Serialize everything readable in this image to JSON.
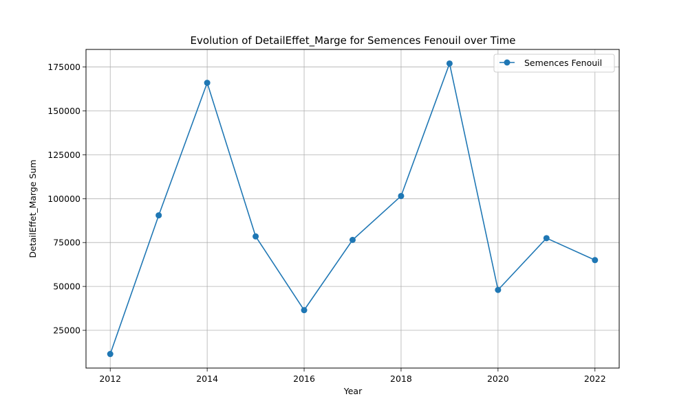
{
  "chart_data": {
    "type": "line",
    "title": "Evolution of DetailEffet_Marge for Semences Fenouil over Time",
    "xlabel": "Year",
    "ylabel": "DetailEffet_Marge Sum",
    "xlim": [
      2011.5,
      2022.5
    ],
    "ylim": [
      3500,
      185000
    ],
    "xticks": [
      2012,
      2014,
      2016,
      2018,
      2020,
      2022
    ],
    "yticks": [
      25000,
      50000,
      75000,
      100000,
      125000,
      150000,
      175000
    ],
    "grid": true,
    "legend_position": "top-right",
    "series": [
      {
        "name": "Semences Fenouil",
        "color": "#1f77b4",
        "x": [
          2012,
          2013,
          2014,
          2015,
          2016,
          2017,
          2018,
          2019,
          2020,
          2021,
          2022
        ],
        "values": [
          11500,
          90500,
          166000,
          78500,
          36500,
          76500,
          101500,
          177000,
          48000,
          77500,
          65000
        ]
      }
    ]
  }
}
